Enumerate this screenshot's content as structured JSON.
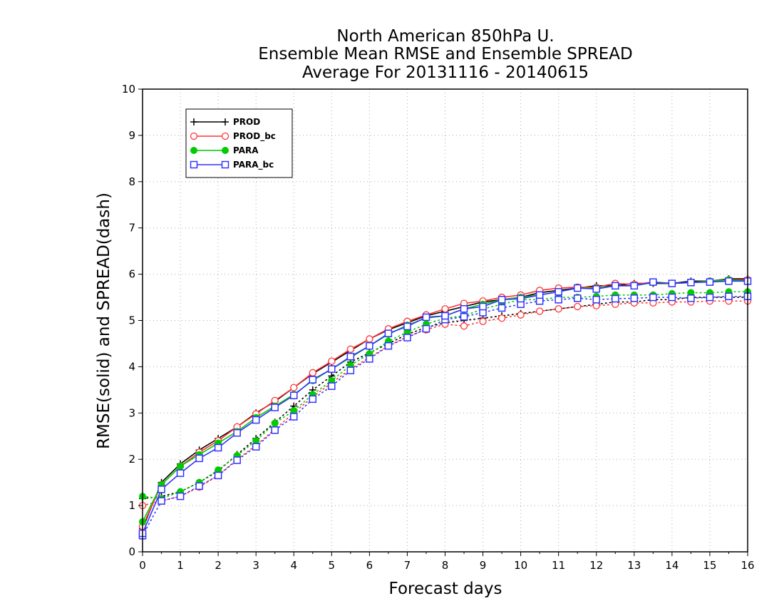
{
  "chart_data": {
    "type": "line",
    "title": [
      "North American 850hPa U.",
      "Ensemble Mean RMSE and Ensemble SPREAD",
      "Average For 20131116 - 20140615"
    ],
    "xlabel": "Forecast days",
    "ylabel": "RMSE(solid) and SPREAD(dash)",
    "xlim": [
      0,
      16
    ],
    "ylim": [
      0,
      10
    ],
    "xticks": [
      "0",
      "1",
      "2",
      "3",
      "4",
      "5",
      "6",
      "7",
      "8",
      "9",
      "10",
      "11",
      "12",
      "13",
      "14",
      "15",
      "16"
    ],
    "yticks": [
      "0",
      "1",
      "2",
      "3",
      "4",
      "5",
      "6",
      "7",
      "8",
      "9",
      "10"
    ],
    "grid": true,
    "legend_position": "top-left",
    "x": [
      0,
      0.5,
      1,
      1.5,
      2,
      2.5,
      3,
      3.5,
      4,
      4.5,
      5,
      5.5,
      6,
      6.5,
      7,
      7.5,
      8,
      8.5,
      9,
      9.5,
      10,
      10.5,
      11,
      11.5,
      12,
      12.5,
      13,
      13.5,
      14,
      14.5,
      15,
      15.5,
      16
    ],
    "series": [
      {
        "name": "PROD",
        "color": "#000000",
        "marker": "plus",
        "rmse": [
          0.5,
          1.5,
          1.9,
          2.2,
          2.45,
          2.7,
          3.0,
          3.25,
          3.55,
          3.85,
          4.1,
          4.35,
          4.6,
          4.8,
          4.95,
          5.1,
          5.2,
          5.3,
          5.4,
          5.45,
          5.5,
          5.6,
          5.65,
          5.7,
          5.75,
          5.75,
          5.8,
          5.8,
          5.8,
          5.85,
          5.85,
          5.9,
          5.9
        ],
        "spread": [
          1.15,
          1.2,
          1.3,
          1.5,
          1.75,
          2.1,
          2.45,
          2.8,
          3.15,
          3.5,
          3.8,
          4.1,
          4.3,
          4.5,
          4.7,
          4.85,
          4.95,
          5.0,
          5.05,
          5.1,
          5.15,
          5.2,
          5.25,
          5.3,
          5.35,
          5.4,
          5.4,
          5.45,
          5.45,
          5.5,
          5.5,
          5.5,
          5.5
        ]
      },
      {
        "name": "PROD_bc",
        "color": "#ff3333",
        "marker": "circle",
        "rmse": [
          0.55,
          1.45,
          1.85,
          2.15,
          2.4,
          2.7,
          2.98,
          3.27,
          3.55,
          3.87,
          4.12,
          4.38,
          4.6,
          4.82,
          4.98,
          5.12,
          5.25,
          5.37,
          5.42,
          5.5,
          5.55,
          5.65,
          5.7,
          5.72,
          5.72,
          5.8,
          5.78,
          5.83,
          5.8,
          5.82,
          5.85,
          5.88,
          5.88
        ],
        "spread": [
          1.0,
          1.1,
          1.2,
          1.4,
          1.65,
          2.0,
          2.3,
          2.65,
          3.0,
          3.35,
          3.65,
          3.95,
          4.2,
          4.45,
          4.65,
          4.8,
          4.92,
          4.88,
          4.98,
          5.05,
          5.12,
          5.2,
          5.25,
          5.3,
          5.32,
          5.35,
          5.38,
          5.38,
          5.4,
          5.4,
          5.42,
          5.42,
          5.42
        ]
      },
      {
        "name": "PARA",
        "color": "#00cc00",
        "marker": "dot",
        "rmse": [
          0.65,
          1.45,
          1.85,
          2.1,
          2.35,
          2.6,
          2.9,
          3.15,
          3.4,
          3.7,
          3.95,
          4.2,
          4.45,
          4.7,
          4.9,
          5.05,
          5.1,
          5.25,
          5.35,
          5.45,
          5.5,
          5.55,
          5.62,
          5.7,
          5.7,
          5.75,
          5.75,
          5.82,
          5.8,
          5.82,
          5.85,
          5.88,
          5.85
        ],
        "spread": [
          1.2,
          1.15,
          1.3,
          1.5,
          1.77,
          2.08,
          2.4,
          2.78,
          3.05,
          3.4,
          3.7,
          4.03,
          4.28,
          4.55,
          4.75,
          4.92,
          5.05,
          5.1,
          5.25,
          5.35,
          5.45,
          5.45,
          5.5,
          5.5,
          5.52,
          5.55,
          5.55,
          5.55,
          5.58,
          5.6,
          5.6,
          5.62,
          5.62
        ]
      },
      {
        "name": "PARA_bc",
        "color": "#3333ff",
        "marker": "square",
        "rmse": [
          0.4,
          1.35,
          1.7,
          2.02,
          2.25,
          2.57,
          2.85,
          3.12,
          3.38,
          3.72,
          3.95,
          4.22,
          4.45,
          4.72,
          4.87,
          5.07,
          5.1,
          5.25,
          5.3,
          5.45,
          5.47,
          5.55,
          5.62,
          5.7,
          5.68,
          5.75,
          5.75,
          5.83,
          5.8,
          5.82,
          5.83,
          5.85,
          5.85
        ],
        "spread": [
          0.35,
          1.1,
          1.2,
          1.42,
          1.65,
          1.98,
          2.27,
          2.63,
          2.92,
          3.3,
          3.58,
          3.92,
          4.17,
          4.45,
          4.63,
          4.82,
          5.02,
          5.08,
          5.17,
          5.27,
          5.35,
          5.42,
          5.45,
          5.48,
          5.45,
          5.47,
          5.48,
          5.5,
          5.5,
          5.48,
          5.5,
          5.52,
          5.52
        ]
      }
    ]
  }
}
